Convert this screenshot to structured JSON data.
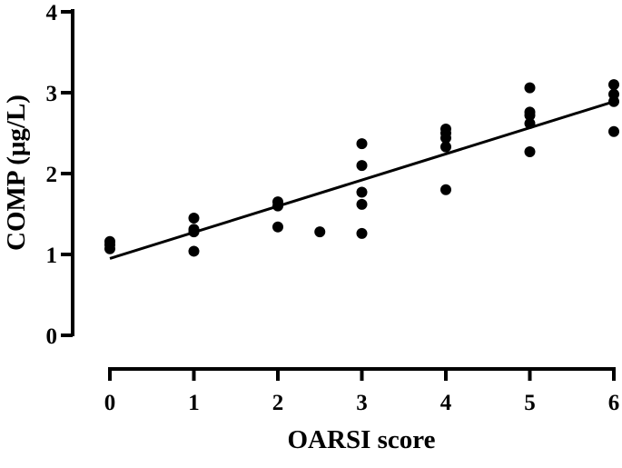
{
  "chart_data": {
    "type": "scatter",
    "title": "",
    "xlabel": "OARSI score",
    "ylabel": "COMP (μg/L)",
    "xlim": [
      0,
      6
    ],
    "ylim": [
      0,
      4
    ],
    "x_ticks": [
      "0",
      "1",
      "2",
      "3",
      "4",
      "5",
      "6"
    ],
    "y_ticks": [
      "0",
      "1",
      "2",
      "3",
      "4"
    ],
    "grid": false,
    "legend": "none",
    "series": [
      {
        "points": [
          [
            0,
            1.16
          ],
          [
            0,
            1.12
          ],
          [
            0,
            1.07
          ],
          [
            1,
            1.45
          ],
          [
            1,
            1.31
          ],
          [
            1,
            1.28
          ],
          [
            1,
            1.04
          ],
          [
            2,
            1.65
          ],
          [
            2,
            1.6
          ],
          [
            2,
            1.34
          ],
          [
            2.5,
            1.28
          ],
          [
            3,
            2.37
          ],
          [
            3,
            2.1
          ],
          [
            3,
            1.77
          ],
          [
            3,
            1.62
          ],
          [
            3,
            1.26
          ],
          [
            4,
            2.55
          ],
          [
            4,
            2.5
          ],
          [
            4,
            2.44
          ],
          [
            4,
            2.33
          ],
          [
            4,
            1.8
          ],
          [
            5,
            3.06
          ],
          [
            5,
            2.76
          ],
          [
            5,
            2.72
          ],
          [
            5,
            2.62
          ],
          [
            5,
            2.27
          ],
          [
            6,
            3.1
          ],
          [
            6,
            2.98
          ],
          [
            6,
            2.89
          ],
          [
            6,
            2.52
          ]
        ]
      }
    ],
    "fit_line": {
      "x": [
        0,
        6
      ],
      "y": [
        0.95,
        2.89
      ]
    },
    "colors": {
      "marker": "#000000",
      "line": "#000000",
      "axis": "#000000"
    }
  }
}
